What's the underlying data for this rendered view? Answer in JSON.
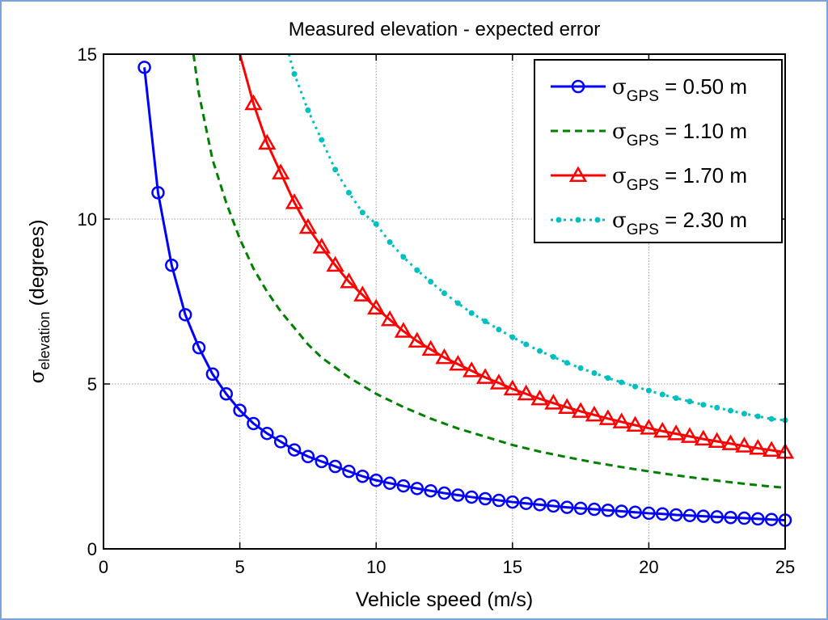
{
  "chart_data": {
    "type": "line",
    "title": "Measured elevation - expected error",
    "xlabel": "Vehicle speed (m/s)",
    "ylabel": {
      "symbol": "σ",
      "subscript": "elevation",
      "suffix": "(degrees)"
    },
    "xlim": [
      0,
      25
    ],
    "ylim": [
      0,
      15
    ],
    "xticks": [
      0,
      5,
      10,
      15,
      20,
      25
    ],
    "yticks": [
      0,
      5,
      10,
      15
    ],
    "grid": true,
    "legend_position": "top-right",
    "series": [
      {
        "name": "σGPS = 0.50 m",
        "label_symbol": "σ",
        "label_sub": "GPS",
        "label_value": " = 0.50 m",
        "sigma_gps": 0.5,
        "color": "#0000ff",
        "style": "solid",
        "marker": "circle",
        "x": [
          1.5,
          2,
          2.5,
          3,
          3.5,
          4,
          4.5,
          5,
          5.5,
          6,
          6.5,
          7,
          7.5,
          8,
          8.5,
          9,
          9.5,
          10,
          10.5,
          11,
          11.5,
          12,
          12.5,
          13,
          13.5,
          14,
          14.5,
          15,
          15.5,
          16,
          16.5,
          17,
          17.5,
          18,
          18.5,
          19,
          19.5,
          20,
          20.5,
          21,
          21.5,
          22,
          22.5,
          23,
          23.5,
          24,
          24.5,
          25
        ],
        "y": [
          14.6,
          10.8,
          8.6,
          7.1,
          6.1,
          5.3,
          4.7,
          4.2,
          3.8,
          3.5,
          3.25,
          3.0,
          2.8,
          2.65,
          2.5,
          2.35,
          2.2,
          2.08,
          1.99,
          1.91,
          1.83,
          1.76,
          1.69,
          1.63,
          1.57,
          1.52,
          1.47,
          1.42,
          1.38,
          1.34,
          1.3,
          1.26,
          1.23,
          1.2,
          1.17,
          1.14,
          1.11,
          1.08,
          1.06,
          1.03,
          1.01,
          0.99,
          0.97,
          0.95,
          0.93,
          0.91,
          0.89,
          0.87
        ]
      },
      {
        "name": "σGPS = 1.10 m",
        "label_symbol": "σ",
        "label_sub": "GPS",
        "label_value": " = 1.10 m",
        "sigma_gps": 1.1,
        "color": "#008000",
        "style": "dashed",
        "marker": "none",
        "x": [
          3.3,
          3.5,
          4,
          4.5,
          5,
          5.5,
          6,
          6.5,
          7,
          7.5,
          8,
          8.5,
          9,
          9.5,
          10,
          11,
          12,
          13,
          14,
          15,
          16,
          17,
          18,
          19,
          20,
          21,
          22,
          23,
          24,
          25
        ],
        "y": [
          15,
          13.8,
          11.8,
          10.5,
          9.4,
          8.5,
          7.8,
          7.2,
          6.7,
          6.2,
          5.8,
          5.5,
          5.2,
          4.95,
          4.7,
          4.3,
          3.95,
          3.65,
          3.4,
          3.15,
          2.95,
          2.78,
          2.62,
          2.48,
          2.35,
          2.23,
          2.12,
          2.02,
          1.93,
          1.85
        ]
      },
      {
        "name": "σGPS = 1.70 m",
        "label_symbol": "σ",
        "label_sub": "GPS",
        "label_value": " = 1.70 m",
        "sigma_gps": 1.7,
        "color": "#ff0000",
        "style": "solid",
        "marker": "triangle",
        "x": [
          5,
          5.5,
          6,
          6.5,
          7,
          7.5,
          8,
          8.5,
          9,
          9.5,
          10,
          10.5,
          11,
          11.5,
          12,
          12.5,
          13,
          13.5,
          14,
          14.5,
          15,
          15.5,
          16,
          16.5,
          17,
          17.5,
          18,
          18.5,
          19,
          19.5,
          20,
          20.5,
          21,
          21.5,
          22,
          22.5,
          23,
          23.5,
          24,
          24.5,
          25
        ],
        "y": [
          15,
          13.5,
          12.3,
          11.4,
          10.5,
          9.75,
          9.15,
          8.6,
          8.1,
          7.7,
          7.3,
          6.95,
          6.6,
          6.3,
          6.05,
          5.8,
          5.6,
          5.4,
          5.2,
          5.03,
          4.85,
          4.7,
          4.55,
          4.42,
          4.29,
          4.17,
          4.06,
          3.95,
          3.85,
          3.75,
          3.66,
          3.57,
          3.49,
          3.41,
          3.33,
          3.26,
          3.19,
          3.12,
          3.05,
          2.99,
          2.93
        ]
      },
      {
        "name": "σGPS = 2.30 m",
        "label_symbol": "σ",
        "label_sub": "GPS",
        "label_value": " = 2.30 m",
        "sigma_gps": 2.3,
        "color": "#00bfbf",
        "style": "dashdot",
        "marker": "dot",
        "x": [
          6.8,
          7,
          7.5,
          8,
          8.5,
          9,
          9.5,
          10,
          10.5,
          11,
          11.5,
          12,
          12.5,
          13,
          13.5,
          14,
          14.5,
          15,
          15.5,
          16,
          16.5,
          17,
          17.5,
          18,
          18.5,
          19,
          19.5,
          20,
          20.5,
          21,
          21.5,
          22,
          22.5,
          23,
          23.5,
          24,
          24.5,
          25
        ],
        "y": [
          15,
          14.4,
          13.3,
          12.4,
          11.5,
          10.8,
          10.2,
          9.85,
          9.3,
          8.85,
          8.45,
          8.1,
          7.75,
          7.45,
          7.15,
          6.9,
          6.65,
          6.42,
          6.2,
          6.0,
          5.82,
          5.64,
          5.48,
          5.33,
          5.18,
          5.05,
          4.92,
          4.8,
          4.68,
          4.57,
          4.47,
          4.37,
          4.28,
          4.19,
          4.1,
          4.02,
          3.94,
          3.9
        ]
      }
    ]
  }
}
